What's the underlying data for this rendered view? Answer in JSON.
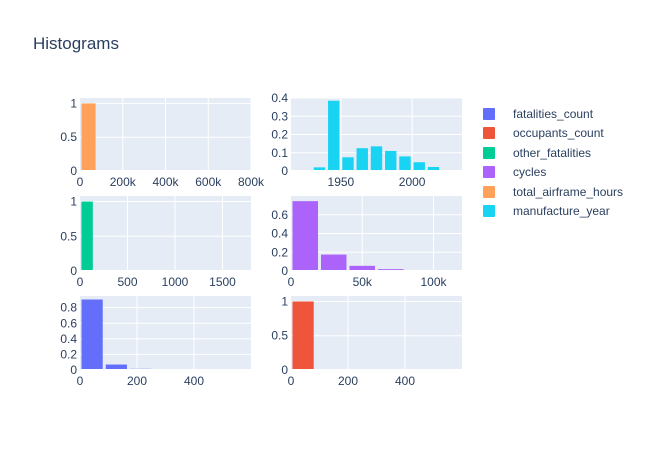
{
  "title": "Histograms",
  "legend": [
    {
      "name": "fatalities_count",
      "color": "#636efa"
    },
    {
      "name": "occupants_count",
      "color": "#ef553b"
    },
    {
      "name": "other_fatalities",
      "color": "#00cc96"
    },
    {
      "name": "cycles",
      "color": "#ab63fa"
    },
    {
      "name": "total_airframe_hours",
      "color": "#ffa15a"
    },
    {
      "name": "manufacture_year",
      "color": "#19d3f3"
    }
  ],
  "chart_data": [
    {
      "type": "bar",
      "series_name": "total_airframe_hours",
      "color": "#ffa15a",
      "xlim": [
        0,
        800000
      ],
      "ylim": [
        0,
        1.08
      ],
      "xticks": [
        0,
        200000,
        400000,
        600000,
        800000
      ],
      "xtick_labels": [
        "0",
        "200k",
        "400k",
        "600k",
        "800k"
      ],
      "yticks": [
        0,
        0.5,
        1
      ],
      "ytick_labels": [
        "0",
        "0.5",
        "1"
      ],
      "bin_edges": [
        0,
        80000
      ],
      "values": [
        1.0
      ]
    },
    {
      "type": "bar",
      "series_name": "manufacture_year",
      "color": "#19d3f3",
      "xlim": [
        1915,
        2035
      ],
      "ylim": [
        0,
        0.4
      ],
      "xticks": [
        1950,
        2000
      ],
      "xtick_labels": [
        "1950",
        "2000"
      ],
      "yticks": [
        0,
        0.1,
        0.2,
        0.3,
        0.4
      ],
      "ytick_labels": [
        "0",
        "0.1",
        "0.2",
        "0.3",
        "0.4"
      ],
      "bin_edges": [
        1920,
        1930,
        1940,
        1950,
        1960,
        1970,
        1980,
        1990,
        2000,
        2010,
        2020
      ],
      "values": [
        0.005,
        0.02,
        0.385,
        0.075,
        0.125,
        0.135,
        0.11,
        0.08,
        0.048,
        0.022
      ]
    },
    {
      "type": "bar",
      "series_name": "other_fatalities",
      "color": "#00cc96",
      "xlim": [
        0,
        1800
      ],
      "ylim": [
        0,
        1.08
      ],
      "xticks": [
        0,
        500,
        1000,
        1500
      ],
      "xtick_labels": [
        "0",
        "500",
        "1000",
        "1500"
      ],
      "yticks": [
        0,
        0.5,
        1
      ],
      "ytick_labels": [
        "0",
        "0.5",
        "1"
      ],
      "bin_edges": [
        0,
        150
      ],
      "values": [
        1.0
      ]
    },
    {
      "type": "bar",
      "series_name": "cycles",
      "color": "#ab63fa",
      "xlim": [
        0,
        120000
      ],
      "ylim": [
        0,
        0.8
      ],
      "xticks": [
        0,
        50000,
        100000
      ],
      "xtick_labels": [
        "0",
        "50k",
        "100k"
      ],
      "yticks": [
        0,
        0.2,
        0.4,
        0.6
      ],
      "ytick_labels": [
        "0",
        "0.2",
        "0.4",
        "0.6"
      ],
      "bin_edges": [
        0,
        20000,
        40000,
        60000,
        80000,
        100000
      ],
      "values": [
        0.745,
        0.175,
        0.055,
        0.02,
        0.008
      ]
    },
    {
      "type": "bar",
      "series_name": "fatalities_count",
      "color": "#636efa",
      "xlim": [
        0,
        600
      ],
      "ylim": [
        0,
        0.95
      ],
      "xticks": [
        0,
        200,
        400
      ],
      "xtick_labels": [
        "0",
        "200",
        "400"
      ],
      "yticks": [
        0,
        0.2,
        0.4,
        0.6,
        0.8
      ],
      "ytick_labels": [
        "0",
        "0.2",
        "0.4",
        "0.6",
        "0.8"
      ],
      "bin_edges": [
        0,
        85,
        170,
        255,
        340
      ],
      "values": [
        0.905,
        0.07,
        0.015,
        0.006
      ]
    },
    {
      "type": "bar",
      "series_name": "occupants_count",
      "color": "#ef553b",
      "xlim": [
        0,
        600
      ],
      "ylim": [
        0,
        1.08
      ],
      "xticks": [
        0,
        200,
        400
      ],
      "xtick_labels": [
        "0",
        "200",
        "400"
      ],
      "yticks": [
        0,
        0.5,
        1
      ],
      "ytick_labels": [
        "0",
        "0.5",
        "1"
      ],
      "bin_edges": [
        0,
        85,
        170
      ],
      "values": [
        1.0,
        0.008
      ]
    }
  ]
}
